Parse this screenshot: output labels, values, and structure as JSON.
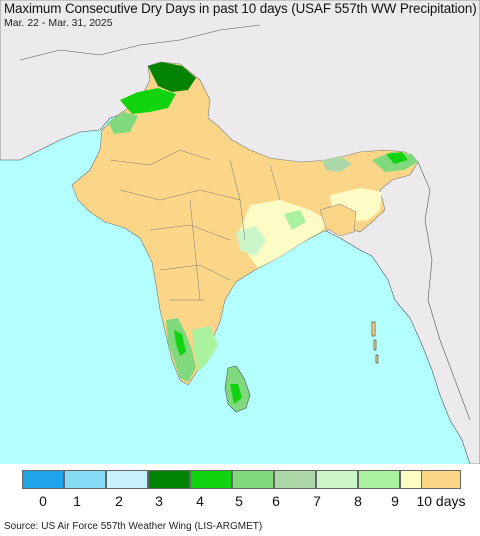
{
  "title": "Maximum Consecutive Dry Days in past 10 days (USAF 557th WW Precipitation)",
  "subtitle": "Mar. 22 - Mar. 31, 2025",
  "source": "Source: US Air Force 557th Weather Wing (LIS-ARGMET)",
  "legend": {
    "labels": [
      "0",
      "1",
      "2",
      "3",
      "4",
      "5",
      "6",
      "7",
      "8",
      "9",
      "10 days"
    ],
    "colors": [
      "#1ea4e8",
      "#87dcf5",
      "#c5f1fb",
      "#038303",
      "#11d411",
      "#81d97d",
      "#abd8a6",
      "#ccf5ca",
      "#aaf1a0",
      "#fcfcc4",
      "#fcd688"
    ]
  },
  "map_colors": {
    "ocean": "#b3ffff",
    "outside_land": "#eceaec",
    "dry_10": "#fcd688",
    "dry_9": "#fcfcc4",
    "green_dark": "#038303",
    "green_bright": "#11d411",
    "green_mid": "#81d97d"
  }
}
